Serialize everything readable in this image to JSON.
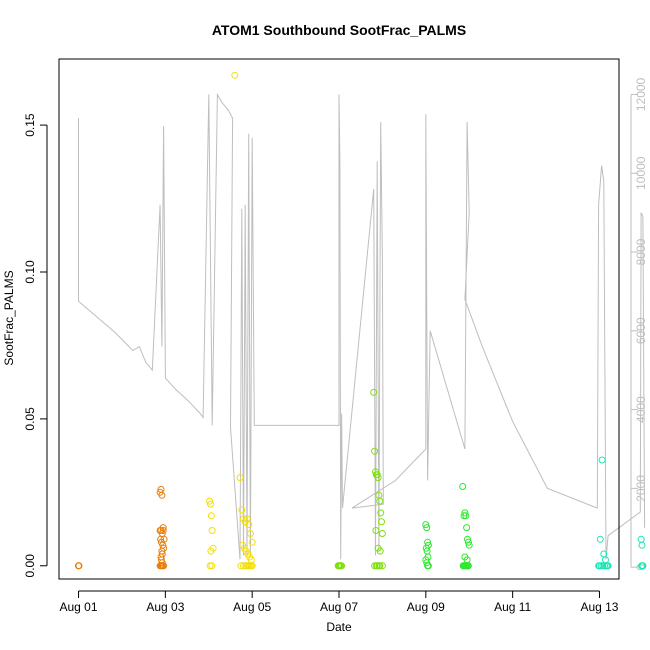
{
  "chart_data": {
    "type": "scatter",
    "title": "ATOM1 Southbound SootFrac_PALMS",
    "xlabel": "Date",
    "ylabel": "SootFrac_PALMS",
    "x_unit": "days since Aug 01",
    "xlim": [
      -0.45,
      12.45
    ],
    "ylim": [
      -0.0045,
      0.1725
    ],
    "y_ticks": [
      0.0,
      0.05,
      0.1,
      0.15
    ],
    "y_tick_labels": [
      "0.00",
      "0.05",
      "0.10",
      "0.15"
    ],
    "x_ticks": [
      0,
      2,
      4,
      6,
      8,
      10,
      12
    ],
    "x_tick_labels": [
      "Aug 01",
      "Aug 03",
      "Aug 05",
      "Aug 07",
      "Aug 09",
      "Aug 11",
      "Aug 13"
    ],
    "y2_label": "",
    "y2lim": [
      -300,
      12900
    ],
    "y2_ticks": [
      0,
      2000,
      4000,
      6000,
      8000,
      10000,
      12000
    ],
    "y2_tick_labels": [
      "0",
      "2000",
      "4000",
      "6000",
      "8000",
      "10000",
      "12000"
    ],
    "altitude_color": "#bebebe",
    "altitude_trace": [
      [
        0.0,
        11400
      ],
      [
        0.0,
        6750
      ],
      [
        0.85,
        5950
      ],
      [
        1.25,
        5500
      ],
      [
        1.4,
        5600
      ],
      [
        1.55,
        5200
      ],
      [
        1.7,
        5000
      ],
      [
        1.88,
        9200
      ],
      [
        1.92,
        5600
      ],
      [
        1.96,
        11200
      ],
      [
        2.0,
        4800
      ],
      [
        2.25,
        4500
      ],
      [
        2.55,
        4200
      ],
      [
        2.8,
        3900
      ],
      [
        2.87,
        3800
      ],
      [
        3.0,
        12000
      ],
      [
        3.08,
        3600
      ],
      [
        3.2,
        12000
      ],
      [
        3.3,
        11800
      ],
      [
        3.45,
        11600
      ],
      [
        3.55,
        11400
      ],
      [
        3.5,
        3550
      ],
      [
        3.72,
        200
      ],
      [
        3.76,
        9100
      ],
      [
        3.8,
        300
      ],
      [
        3.84,
        9200
      ],
      [
        3.88,
        300
      ],
      [
        3.92,
        11000
      ],
      [
        3.96,
        250
      ],
      [
        4.0,
        10900
      ],
      [
        4.05,
        3600
      ],
      [
        6.0,
        3600
      ],
      [
        6.0,
        12000
      ],
      [
        6.02,
        10300
      ],
      [
        6.04,
        200
      ],
      [
        6.06,
        3900
      ],
      [
        6.08,
        1500
      ],
      [
        6.8,
        9600
      ],
      [
        6.84,
        300
      ],
      [
        6.88,
        10300
      ],
      [
        6.92,
        400
      ],
      [
        6.96,
        11300
      ],
      [
        7.0,
        7800
      ],
      [
        7.02,
        1600
      ],
      [
        6.3,
        1500
      ],
      [
        7.3,
        2200
      ],
      [
        8.0,
        3000
      ],
      [
        8.0,
        11500
      ],
      [
        8.04,
        2200
      ],
      [
        8.1,
        6000
      ],
      [
        8.9,
        3000
      ],
      [
        8.95,
        11300
      ],
      [
        9.0,
        9000
      ],
      [
        8.9,
        6800
      ],
      [
        9.3,
        5600
      ],
      [
        10.0,
        3700
      ],
      [
        10.8,
        2000
      ],
      [
        11.95,
        1500
      ],
      [
        11.98,
        9200
      ],
      [
        12.05,
        10200
      ],
      [
        12.1,
        9800
      ],
      [
        12.15,
        200
      ],
      [
        12.2,
        800
      ],
      [
        12.94,
        1400
      ],
      [
        12.96,
        9000
      ],
      [
        13.0,
        8900
      ],
      [
        13.04,
        1000
      ]
    ],
    "series": [
      {
        "color": "#e87f0a",
        "x": [
          0.0,
          0.0,
          0.01,
          1.88,
          1.9,
          1.92,
          1.95,
          1.88,
          1.9,
          1.93,
          1.95,
          1.97,
          1.89,
          1.91,
          1.94,
          1.96,
          1.92,
          1.93,
          1.9,
          1.91,
          1.93,
          1.96,
          1.88,
          1.9,
          1.92,
          1.94
        ],
        "y": [
          0.0,
          0.0,
          0.0,
          0.025,
          0.026,
          0.024,
          0.013,
          0.012,
          0.012,
          0.011,
          0.012,
          0.009,
          0.009,
          0.008,
          0.007,
          0.006,
          0.005,
          0.004,
          0.003,
          0.002,
          0.001,
          0.0,
          0.0,
          0.0,
          0.0,
          0.0
        ]
      },
      {
        "color": "#f2df0a",
        "x": [
          3.02,
          3.04,
          3.06,
          3.08,
          3.1,
          3.05,
          3.07,
          3.03,
          3.6,
          3.72,
          3.76,
          3.8,
          3.84,
          3.88,
          3.92,
          3.96,
          4.0,
          3.78,
          3.82,
          3.86,
          3.9,
          3.94,
          3.98,
          3.74,
          3.8,
          3.86,
          3.92,
          3.98,
          3.85,
          3.9,
          3.95,
          4.0
        ],
        "y": [
          0.022,
          0.021,
          0.017,
          0.012,
          0.006,
          0.005,
          0.0,
          0.0,
          0.167,
          0.03,
          0.019,
          0.016,
          0.015,
          0.016,
          0.014,
          0.011,
          0.008,
          0.007,
          0.006,
          0.005,
          0.004,
          0.003,
          0.002,
          0.0,
          0.0,
          0.0,
          0.0,
          0.0,
          0.0,
          0.0,
          0.0,
          0.0
        ]
      },
      {
        "color": "#7ee00a",
        "x": [
          5.98,
          6.0,
          6.02,
          6.04,
          6.06,
          6.8,
          6.82,
          6.84,
          6.86,
          6.88,
          6.9,
          6.92,
          6.94,
          6.96,
          6.98,
          7.0,
          6.85,
          6.9,
          6.95,
          6.82,
          6.88,
          6.94,
          7.0,
          6.86,
          6.92
        ],
        "y": [
          0.0,
          0.0,
          0.0,
          0.0,
          0.0,
          0.059,
          0.039,
          0.032,
          0.031,
          0.031,
          0.03,
          0.024,
          0.022,
          0.018,
          0.015,
          0.011,
          0.012,
          0.006,
          0.005,
          0.0,
          0.0,
          0.0,
          0.0,
          0.0,
          0.0
        ]
      },
      {
        "color": "#2de82d",
        "x": [
          8.0,
          8.02,
          8.04,
          8.06,
          8.01,
          8.03,
          8.05,
          8.0,
          8.02,
          8.04,
          8.06,
          8.85,
          8.88,
          8.9,
          8.92,
          8.94,
          8.96,
          8.98,
          9.0,
          8.9,
          8.95,
          8.86,
          8.9,
          8.94,
          8.98,
          8.88,
          8.92,
          8.96
        ],
        "y": [
          0.014,
          0.013,
          0.008,
          0.007,
          0.006,
          0.005,
          0.003,
          0.002,
          0.001,
          0.0,
          0.0,
          0.027,
          0.017,
          0.018,
          0.017,
          0.013,
          0.009,
          0.008,
          0.007,
          0.003,
          0.002,
          0.0,
          0.0,
          0.0,
          0.0,
          0.0,
          0.0,
          0.0
        ]
      },
      {
        "color": "#19e8b4",
        "x": [
          11.98,
          12.0,
          12.04,
          12.08,
          12.12,
          12.16,
          12.2,
          12.02,
          12.06,
          12.1,
          12.14,
          12.18,
          12.96,
          12.98,
          13.0,
          12.97,
          12.99
        ],
        "y": [
          0.0,
          0.0,
          0.0,
          0.0,
          0.0,
          0.0,
          0.0,
          0.009,
          0.036,
          0.004,
          0.002,
          0.0,
          0.009,
          0.007,
          0.0,
          0.0,
          0.0
        ]
      }
    ]
  }
}
